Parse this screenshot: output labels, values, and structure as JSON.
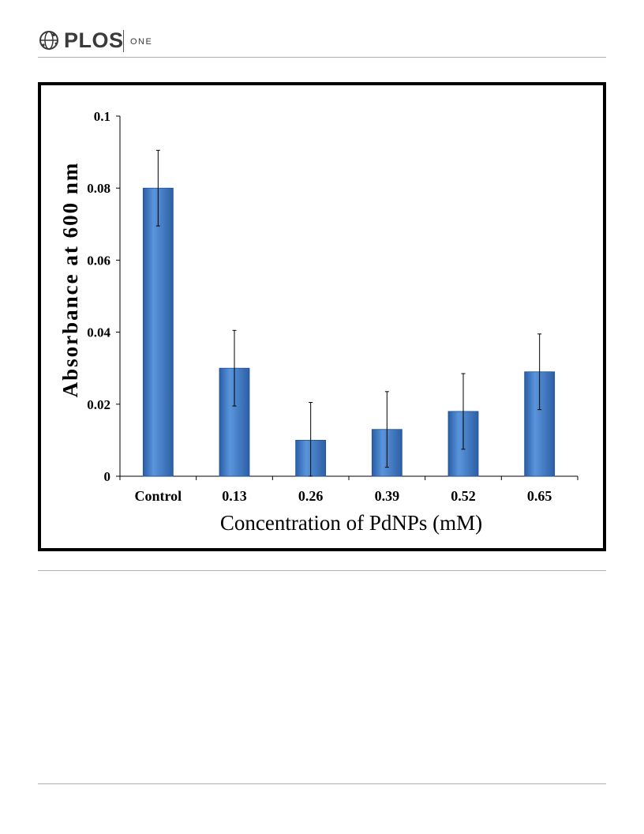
{
  "header": {
    "brand": "PLOS",
    "subbrand": "ONE",
    "logo_icon": "plos-globe-icon"
  },
  "colors": {
    "bar_fill": "#3f7bc8",
    "bar_dark": "#1f4f96",
    "axis": "#000000"
  },
  "chart_data": {
    "type": "bar",
    "categories": [
      "Control",
      "0.13",
      "0.26",
      "0.39",
      "0.52",
      "0.65"
    ],
    "values": [
      0.08,
      0.03,
      0.01,
      0.013,
      0.018,
      0.029
    ],
    "error": [
      0.0105,
      0.0105,
      0.0105,
      0.0105,
      0.0105,
      0.0105
    ],
    "xlabel": "Concentration of PdNPs (mM)",
    "ylabel": "Absorbance at 600 nm",
    "ylim": [
      0,
      0.1
    ],
    "yticks": [
      "0",
      "0.02",
      "0.04",
      "0.06",
      "0.08",
      "0.1"
    ],
    "grid": false,
    "legend": "none"
  }
}
